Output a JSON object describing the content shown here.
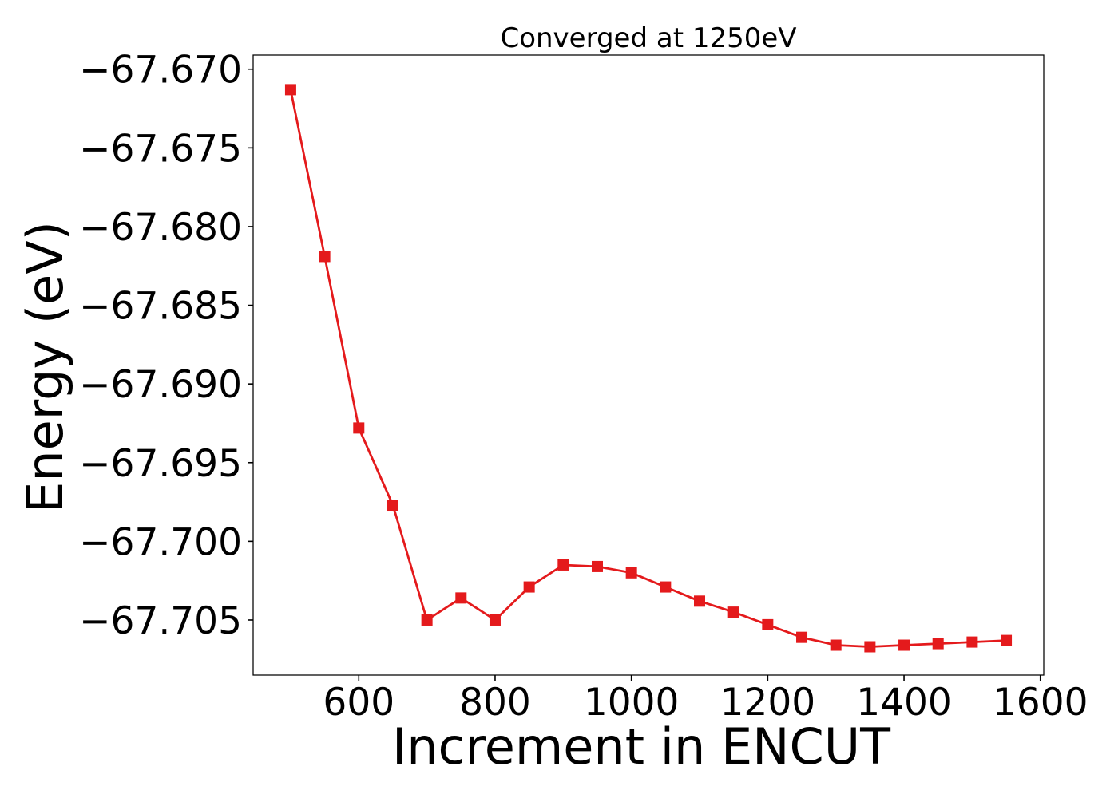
{
  "chart_data": {
    "type": "line",
    "title": "Converged at 1250eV",
    "xlabel": "Increment in ENCUT",
    "ylabel": "Energy (eV)",
    "xlim": [
      445,
      1605
    ],
    "ylim": [
      -67.7085,
      -67.6691
    ],
    "x_ticks": [
      600,
      800,
      1000,
      1200,
      1400,
      1600
    ],
    "x_tick_labels": [
      "600",
      "800",
      "1000",
      "1200",
      "1400",
      "1600"
    ],
    "y_ticks": [
      -67.67,
      -67.675,
      -67.68,
      -67.685,
      -67.69,
      -67.695,
      -67.7,
      -67.705
    ],
    "y_tick_labels": [
      "−67.670",
      "−67.675",
      "−67.680",
      "−67.685",
      "−67.690",
      "−67.695",
      "−67.700",
      "−67.705"
    ],
    "grid": false,
    "series": [
      {
        "color": "#e41a1c",
        "marker": "square",
        "x": [
          500,
          550,
          600,
          650,
          700,
          750,
          800,
          850,
          900,
          950,
          1000,
          1050,
          1100,
          1150,
          1200,
          1250,
          1300,
          1350,
          1400,
          1450,
          1500,
          1550
        ],
        "y": [
          -67.6713,
          -67.6819,
          -67.6928,
          -67.6977,
          -67.705,
          -67.7036,
          -67.705,
          -67.7029,
          -67.7015,
          -67.7016,
          -67.702,
          -67.7029,
          -67.7038,
          -67.7045,
          -67.7053,
          -67.7061,
          -67.7066,
          -67.7067,
          -67.7066,
          -67.7065,
          -67.7064,
          -67.7063
        ]
      }
    ]
  }
}
